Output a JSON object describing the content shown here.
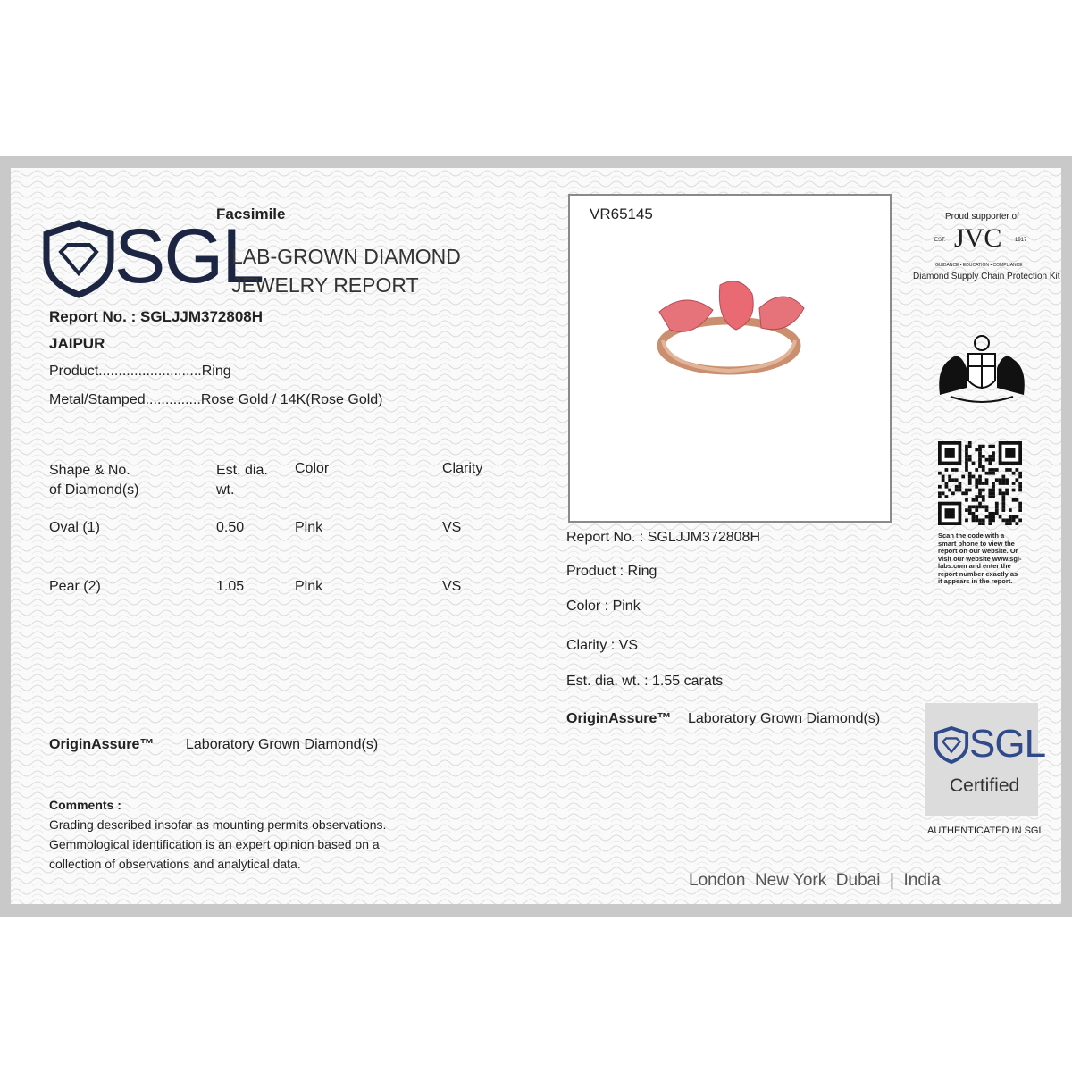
{
  "header": {
    "facsimile": "Facsimile",
    "brand": "SGL",
    "title_line1": "LAB-GROWN DIAMOND",
    "title_line2": "JEWELRY REPORT"
  },
  "report": {
    "report_no": "Report No. : SGLJJM372808H",
    "city": "JAIPUR",
    "product": "Product..........................Ring",
    "metal": "Metal/Stamped..............Rose Gold / 14K(Rose Gold)"
  },
  "table": {
    "header": [
      [
        "Shape & No.",
        "of Diamond(s)"
      ],
      [
        "Est. dia.",
        "wt."
      ],
      [
        "Color"
      ],
      [
        "Clarity"
      ]
    ],
    "rows": [
      [
        "Oval (1)",
        "0.50",
        "Pink",
        "VS"
      ],
      [
        "Pear (2)",
        "1.05",
        "Pink",
        "VS"
      ]
    ]
  },
  "origin": {
    "label": "OriginAssure™",
    "value": "Laboratory Grown Diamond(s)"
  },
  "comments": {
    "title": "Comments :",
    "lines": [
      "Grading described insofar as mounting permits observations.",
      "Gemmological identification is an expert opinion based on a",
      "collection of observations and analytical data."
    ]
  },
  "card": {
    "id": "VR65145",
    "report_no": "Report No. : SGLJJM372808H",
    "product": "Product : Ring",
    "color": "Color : Pink",
    "clarity": "Clarity : VS",
    "weight": "Est. dia. wt. : 1.55 carats",
    "origin_label": "OriginAssure™",
    "origin_value": "Laboratory Grown Diamond(s)"
  },
  "sidebar": {
    "jvc_top": "Proud supporter of",
    "jvc_est": "EST.",
    "jvc_logo": "JVC",
    "jvc_year": "1917",
    "jvc_tagline": "GUIDANCE • EDUCATION • COMPLIANCE",
    "jvc_kit": "Diamond Supply Chain Protection Kit",
    "qr_text": "Scan the code with a smart phone to view the report on our website. Or visit our website www.sgl-labs.com and enter the report number exactly as it appears in the report.",
    "badge_brand": "SGL",
    "badge_certified": "Certified",
    "authenticated": "AUTHENTICATED IN SGL"
  },
  "footer": {
    "locations": "London  New York  Dubai  |  India"
  }
}
